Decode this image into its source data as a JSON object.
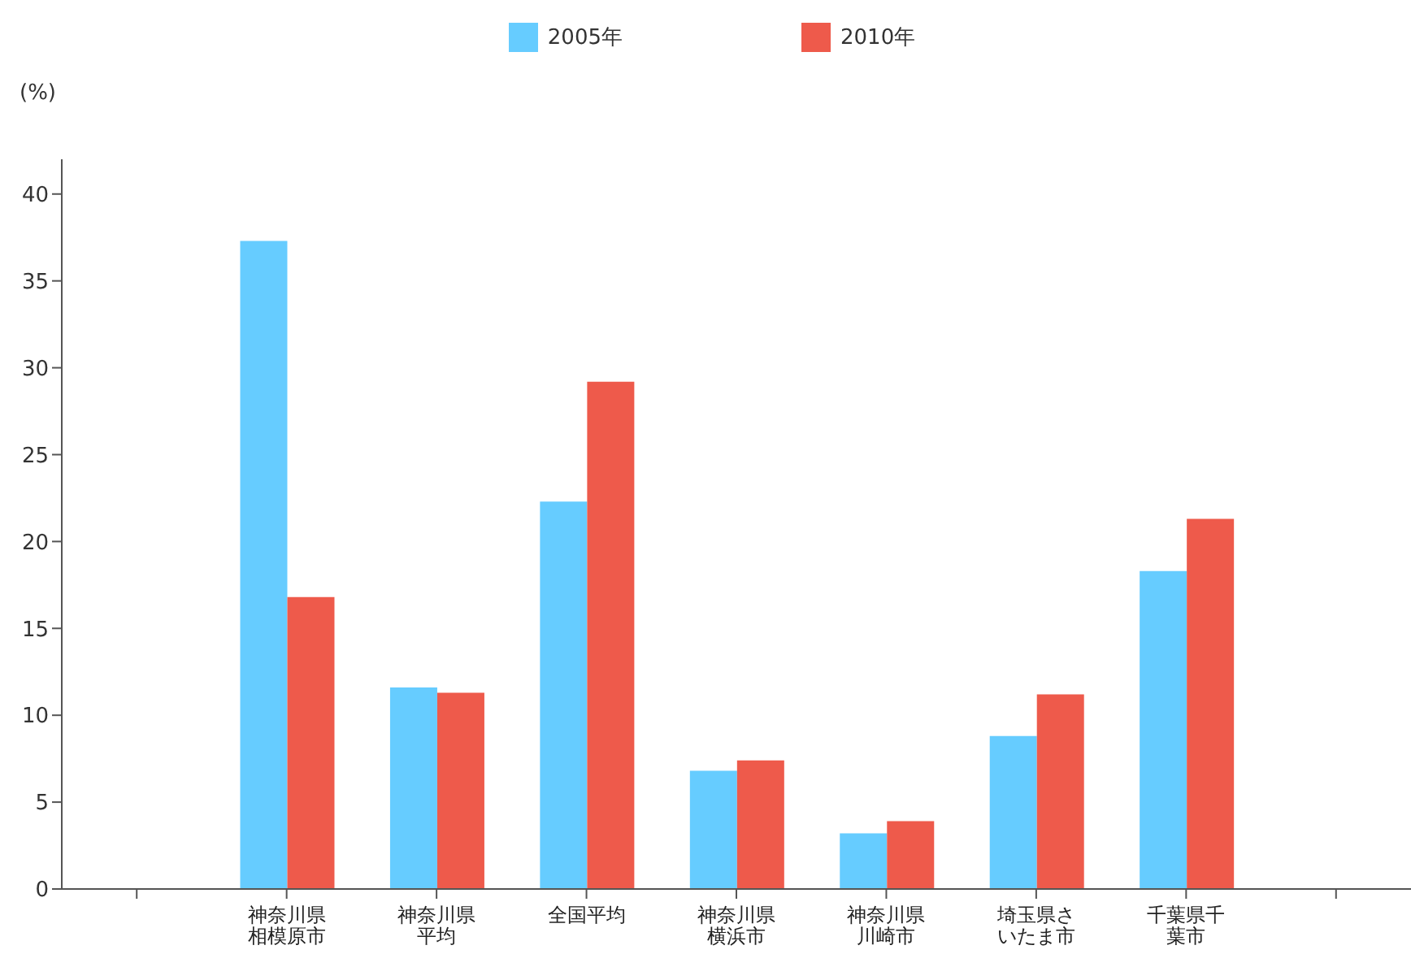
{
  "chart_data": {
    "type": "bar",
    "ylabel": "(%)",
    "categories": [
      null,
      "神奈川県相模原市",
      "神奈川県平均",
      "全国平均",
      "神奈川県横浜市",
      "神奈川県川崎市",
      "埼玉県さいたま市",
      "千葉県千葉市",
      null
    ],
    "series": [
      {
        "name": "2005年",
        "color": "#66ccff",
        "values": [
          null,
          37.3,
          11.6,
          22.3,
          6.8,
          3.2,
          8.8,
          18.3,
          null
        ]
      },
      {
        "name": "2010年",
        "color": "#ee5a4b",
        "values": [
          null,
          16.8,
          11.3,
          29.2,
          7.4,
          3.9,
          11.2,
          21.3,
          null
        ]
      }
    ],
    "ylim": [
      0,
      42
    ],
    "yticks": [
      0,
      5,
      10,
      15,
      20,
      25,
      30,
      35,
      40
    ],
    "grid": false,
    "legend": "top"
  }
}
